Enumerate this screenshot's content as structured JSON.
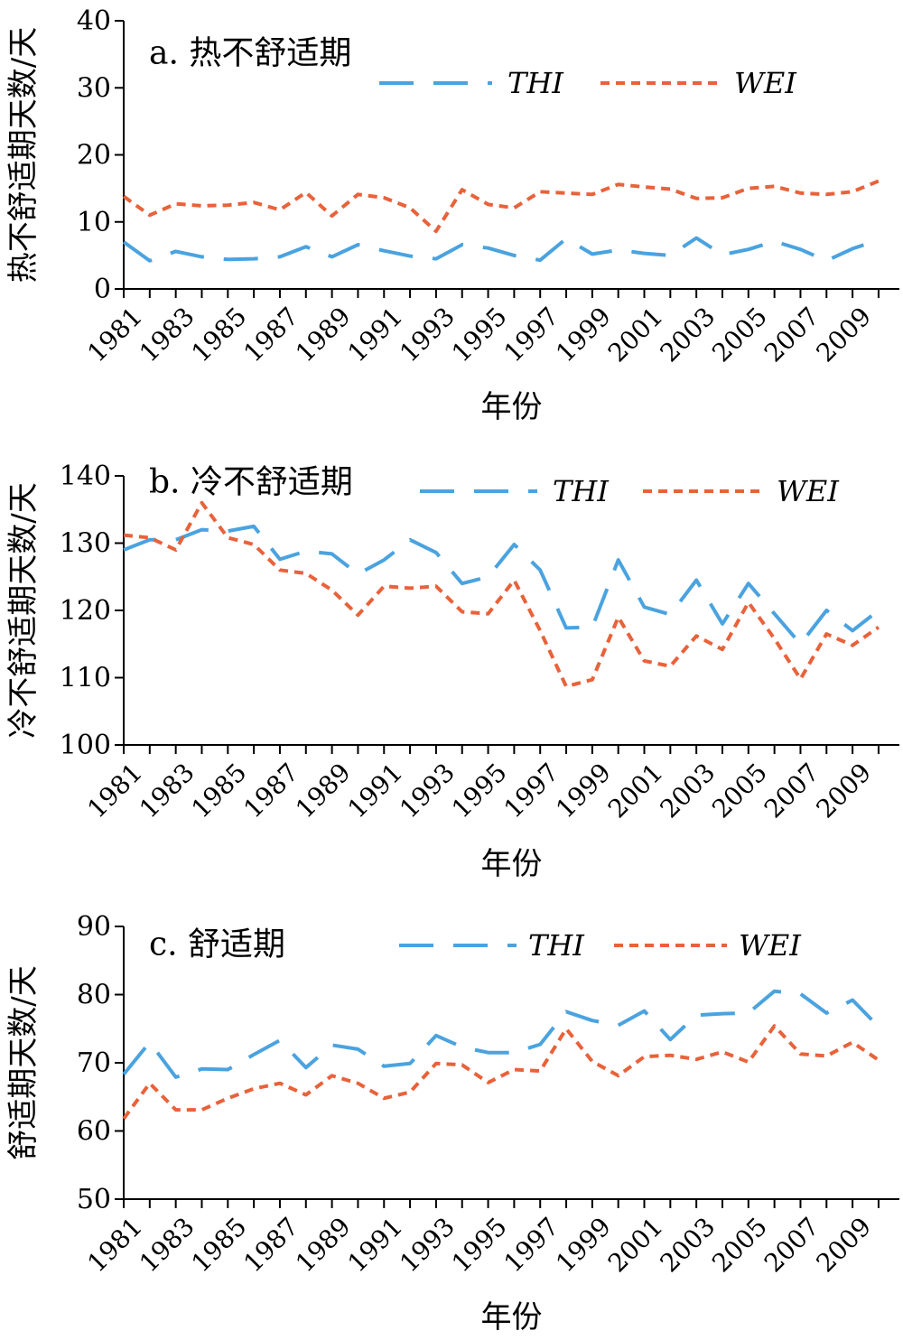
{
  "chart_data": [
    {
      "type": "line",
      "title": "a. 热不舒适期",
      "xlabel": "年份",
      "ylabel": "热不舒适期天数/天",
      "ylim": [
        0,
        40
      ],
      "yticks": [
        "0",
        "10",
        "20",
        "30",
        "40"
      ],
      "x": [
        1981,
        1982,
        1983,
        1984,
        1985,
        1986,
        1987,
        1988,
        1989,
        1990,
        1991,
        1992,
        1993,
        1994,
        1995,
        1996,
        1997,
        1998,
        1999,
        2000,
        2001,
        2002,
        2003,
        2004,
        2005,
        2006,
        2007,
        2008,
        2009,
        2010
      ],
      "xtick_labels": [
        "1981",
        "1983",
        "1985",
        "1987",
        "1989",
        "1991",
        "1993",
        "1995",
        "1997",
        "1999",
        "2001",
        "2003",
        "2005",
        "2007",
        "2009"
      ],
      "legend": "top-right",
      "series": [
        {
          "name": "THI",
          "color": "#4aa3df",
          "style": "dashed",
          "values": [
            7.0,
            4.2,
            5.6,
            4.8,
            4.4,
            4.5,
            4.8,
            6.3,
            4.8,
            6.6,
            5.7,
            4.9,
            4.5,
            6.6,
            6.1,
            5.0,
            4.3,
            7.5,
            5.2,
            5.8,
            5.3,
            5.0,
            7.6,
            5.1,
            5.9,
            7.1,
            5.9,
            4.2,
            6.0,
            7.3
          ]
        },
        {
          "name": "WEI",
          "color": "#e8623a",
          "style": "dotted",
          "values": [
            13.8,
            11.0,
            12.7,
            12.4,
            12.5,
            12.9,
            11.8,
            14.4,
            10.9,
            14.1,
            13.6,
            12.1,
            8.6,
            14.8,
            12.6,
            12.1,
            14.5,
            14.3,
            14.1,
            15.6,
            15.2,
            14.9,
            13.5,
            13.6,
            15.0,
            15.3,
            14.3,
            14.1,
            14.5,
            16.1
          ]
        }
      ]
    },
    {
      "type": "line",
      "title": "b. 冷不舒适期",
      "xlabel": "年份",
      "ylabel": "冷不舒适期天数/天",
      "ylim": [
        100,
        140
      ],
      "yticks": [
        "100",
        "110",
        "120",
        "130",
        "140"
      ],
      "x": [
        1981,
        1982,
        1983,
        1984,
        1985,
        1986,
        1987,
        1988,
        1989,
        1990,
        1991,
        1992,
        1993,
        1994,
        1995,
        1996,
        1997,
        1998,
        1999,
        2000,
        2001,
        2002,
        2003,
        2004,
        2005,
        2006,
        2007,
        2008,
        2009,
        2010
      ],
      "xtick_labels": [
        "1981",
        "1983",
        "1985",
        "1987",
        "1989",
        "1991",
        "1993",
        "1995",
        "1997",
        "1999",
        "2001",
        "2003",
        "2005",
        "2007",
        "2009"
      ],
      "legend": "top-right",
      "series": [
        {
          "name": "THI",
          "color": "#4aa3df",
          "style": "dashed",
          "values": [
            129.0,
            130.5,
            130.5,
            132.0,
            131.8,
            132.5,
            127.6,
            128.8,
            128.4,
            125.4,
            127.5,
            130.5,
            128.6,
            124.0,
            125.0,
            129.8,
            126.0,
            117.4,
            117.5,
            127.5,
            120.5,
            119.4,
            124.5,
            118.0,
            124.0,
            119.5,
            115.0,
            120.0,
            117.0,
            120.0
          ]
        },
        {
          "name": "WEI",
          "color": "#e8623a",
          "style": "dotted",
          "values": [
            131.2,
            130.8,
            129.0,
            136.0,
            130.8,
            129.8,
            126.0,
            125.5,
            123.0,
            119.3,
            123.6,
            123.3,
            123.6,
            119.8,
            119.5,
            124.5,
            117.0,
            108.7,
            109.7,
            119.0,
            112.5,
            111.7,
            116.2,
            114.2,
            121.2,
            115.8,
            109.8,
            116.5,
            114.8,
            117.5
          ]
        }
      ]
    },
    {
      "type": "line",
      "title": "c. 舒适期",
      "xlabel": "年份",
      "ylabel": "舒适期天数/天",
      "ylim": [
        50,
        90
      ],
      "yticks": [
        "50",
        "60",
        "70",
        "80",
        "90"
      ],
      "x": [
        1981,
        1982,
        1983,
        1984,
        1985,
        1986,
        1987,
        1988,
        1989,
        1990,
        1991,
        1992,
        1993,
        1994,
        1995,
        1996,
        1997,
        1998,
        1999,
        2000,
        2001,
        2002,
        2003,
        2004,
        2005,
        2006,
        2007,
        2008,
        2009,
        2010
      ],
      "xtick_labels": [
        "1981",
        "1983",
        "1985",
        "1987",
        "1989",
        "1991",
        "1993",
        "1995",
        "1997",
        "1999",
        "2001",
        "2003",
        "2005",
        "2007",
        "2009"
      ],
      "legend": "top-right",
      "series": [
        {
          "name": "THI",
          "color": "#4aa3df",
          "style": "dashed",
          "values": [
            68.3,
            73.0,
            67.9,
            69.1,
            69.0,
            71.2,
            73.3,
            69.3,
            72.6,
            72.0,
            69.5,
            69.9,
            74.0,
            72.3,
            71.5,
            71.5,
            72.7,
            77.5,
            76.2,
            75.5,
            77.6,
            73.4,
            77.0,
            77.2,
            77.3,
            80.5,
            80.1,
            77.3,
            79.2,
            75.3
          ]
        },
        {
          "name": "WEI",
          "color": "#e8623a",
          "style": "dotted",
          "values": [
            61.8,
            67.0,
            63.1,
            63.1,
            64.8,
            66.2,
            67.0,
            65.3,
            68.1,
            67.0,
            64.8,
            65.7,
            69.9,
            69.7,
            67.1,
            69.0,
            68.8,
            75.0,
            70.2,
            68.1,
            70.9,
            71.1,
            70.5,
            71.6,
            70.1,
            75.4,
            71.3,
            71.0,
            73.0,
            70.4
          ]
        }
      ]
    }
  ]
}
